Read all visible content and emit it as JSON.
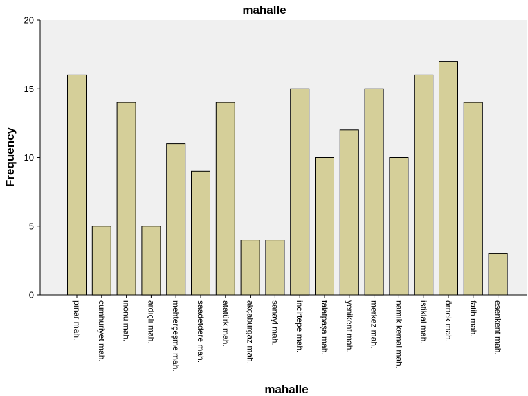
{
  "chart_data": {
    "type": "bar",
    "title": "mahalle",
    "xlabel": "mahalle",
    "ylabel": "Frequency",
    "ylim": [
      0,
      20
    ],
    "yticks": [
      0,
      5,
      10,
      15,
      20
    ],
    "grid": false,
    "bar_color": "#d5cf99",
    "plot_background": "#f0f0f0",
    "categories": [
      "pınar mah.",
      "cumhuriyet mah.",
      "inönü mah.",
      "ardıçlı mah.",
      "mehterçeşme mah.",
      "saadetdere mah.",
      "atatürk mah.",
      "akçaburgaz mah.",
      "sanayi mah.",
      "incirtepe mah.",
      "talatpaşa mah.",
      "yenikent mah.",
      "merkez mah.",
      "namık kemal mah.",
      "istiklal mah.",
      "örnek mah.",
      "fatih mah.",
      "esenkent mah."
    ],
    "values": [
      16,
      5,
      14,
      5,
      11,
      9,
      14,
      4,
      4,
      15,
      10,
      12,
      15,
      10,
      16,
      17,
      14,
      3
    ]
  }
}
